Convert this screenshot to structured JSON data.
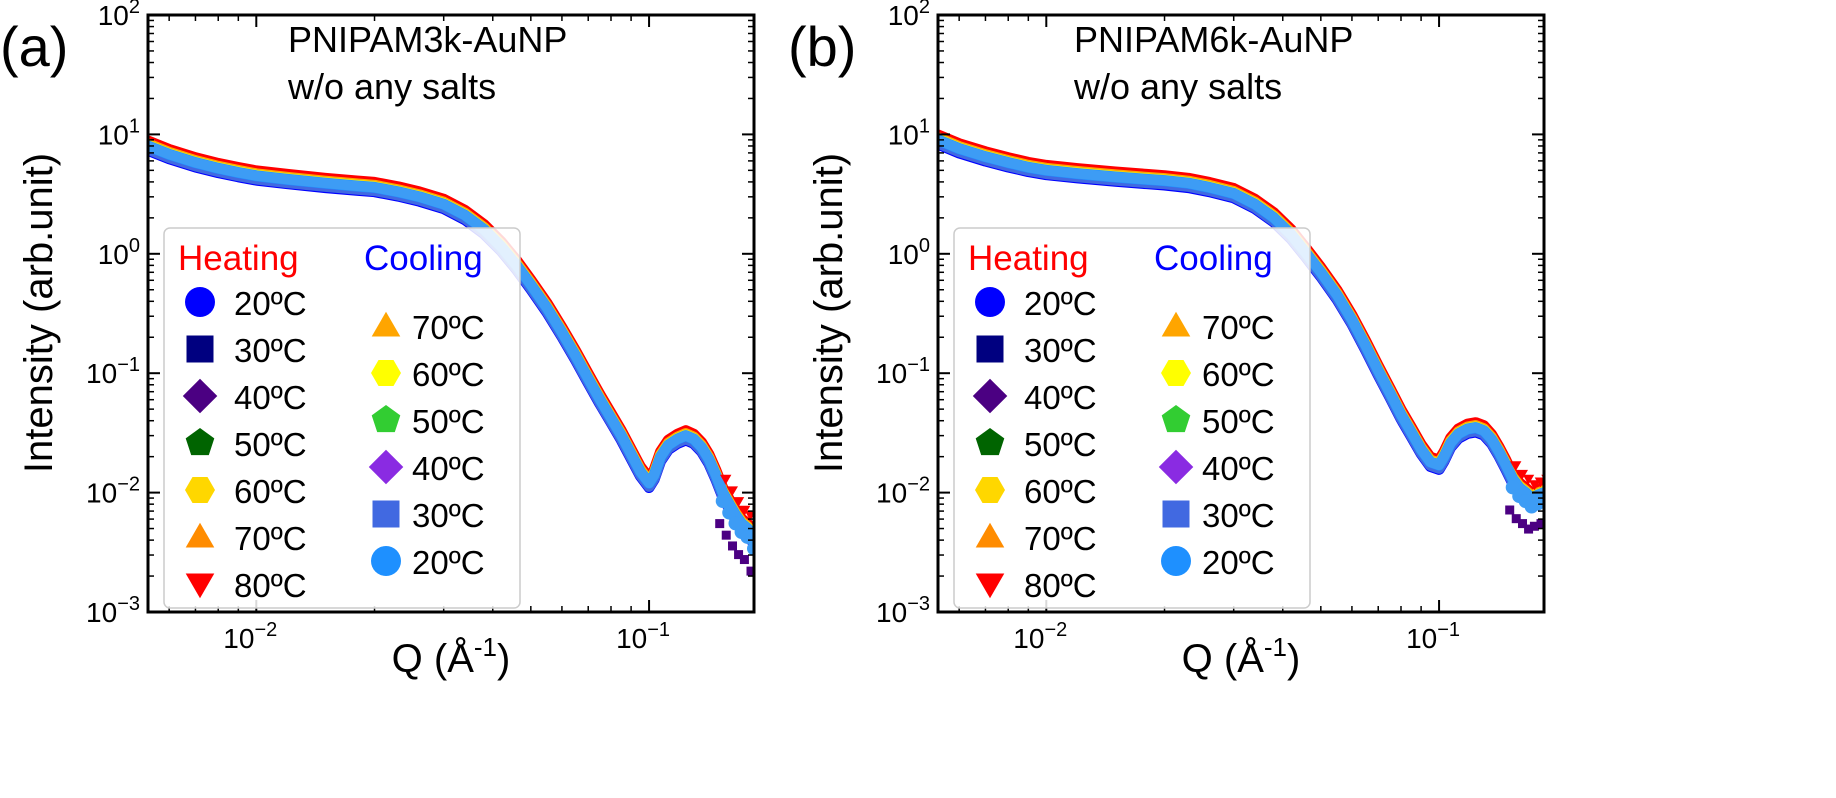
{
  "chart_data": [
    {
      "panel_label": "(a)",
      "type": "scatter",
      "title_lines": [
        "PNIPAM3k-AuNP",
        "w/o any salts"
      ],
      "xlabel": "Q (Å",
      "xlabel_sup": "-1",
      "xlabel_close": ")",
      "ylabel": "Intensity (arb.unit)",
      "xscale": "log",
      "yscale": "log",
      "xlim": [
        0.0053,
        0.185
      ],
      "ylim": [
        0.001,
        100
      ],
      "x_ticks": [
        {
          "value": 0.01,
          "base": "10",
          "exp": "−2"
        },
        {
          "value": 0.1,
          "base": "10",
          "exp": "−1"
        }
      ],
      "y_ticks": [
        {
          "value": 100,
          "base": "10",
          "exp": "2"
        },
        {
          "value": 10,
          "base": "10",
          "exp": "1"
        },
        {
          "value": 1,
          "base": "10",
          "exp": "0"
        },
        {
          "value": 0.1,
          "base": "10",
          "exp": "−1"
        },
        {
          "value": 0.01,
          "base": "10",
          "exp": "−2"
        },
        {
          "value": 0.001,
          "base": "10",
          "exp": "−3"
        }
      ],
      "curve_q": [
        0.0053,
        0.006,
        0.007,
        0.008,
        0.009,
        0.01,
        0.012,
        0.015,
        0.018,
        0.02,
        0.023,
        0.026,
        0.03,
        0.034,
        0.038,
        0.042,
        0.046,
        0.05,
        0.055,
        0.06,
        0.065,
        0.07,
        0.075,
        0.08,
        0.085,
        0.09,
        0.095,
        0.1,
        0.103,
        0.107,
        0.112,
        0.118,
        0.124,
        0.13,
        0.136,
        0.142,
        0.148,
        0.154,
        0.16,
        0.166,
        0.172,
        0.178,
        0.185
      ],
      "curve_i": [
        8.0,
        6.8,
        5.8,
        5.2,
        4.8,
        4.5,
        4.2,
        3.9,
        3.7,
        3.6,
        3.3,
        3.0,
        2.6,
        2.1,
        1.6,
        1.15,
        0.8,
        0.55,
        0.35,
        0.22,
        0.14,
        0.09,
        0.06,
        0.042,
        0.03,
        0.021,
        0.015,
        0.012,
        0.014,
        0.02,
        0.025,
        0.028,
        0.03,
        0.028,
        0.024,
        0.019,
        0.014,
        0.01,
        0.008,
        0.0065,
        0.0055,
        0.005,
        0.004
      ],
      "legend": {
        "heating_title": "Heating",
        "cooling_title": "Cooling",
        "heating_color": "#ff0000",
        "cooling_color": "#0000ff",
        "heating": [
          {
            "label": "20ºC",
            "marker": "circle",
            "color": "#0000ff"
          },
          {
            "label": "30ºC",
            "marker": "square",
            "color": "#000080"
          },
          {
            "label": "40ºC",
            "marker": "diamond",
            "color": "#4b0082"
          },
          {
            "label": "50ºC",
            "marker": "pentagon",
            "color": "#006400"
          },
          {
            "label": "60ºC",
            "marker": "hexagon",
            "color": "#ffd700"
          },
          {
            "label": "70ºC",
            "marker": "triangle-up",
            "color": "#ff8c00"
          },
          {
            "label": "80ºC",
            "marker": "triangle-down",
            "color": "#ff0000"
          }
        ],
        "cooling": [
          {
            "label": "70ºC",
            "marker": "triangle-up",
            "color": "#ffa500"
          },
          {
            "label": "60ºC",
            "marker": "hexagon",
            "color": "#ffff00"
          },
          {
            "label": "50ºC",
            "marker": "pentagon",
            "color": "#32cd32"
          },
          {
            "label": "40ºC",
            "marker": "diamond",
            "color": "#8a2be2"
          },
          {
            "label": "30ºC",
            "marker": "square",
            "color": "#4169e1"
          },
          {
            "label": "20ºC",
            "marker": "circle",
            "color": "#1e90ff"
          }
        ]
      }
    },
    {
      "panel_label": "(b)",
      "type": "scatter",
      "title_lines": [
        "PNIPAM6k-AuNP",
        "w/o any salts"
      ],
      "xlabel": "Q (Å",
      "xlabel_sup": "-1",
      "xlabel_close": ")",
      "ylabel": "Intensity (arb.unit)",
      "xscale": "log",
      "yscale": "log",
      "xlim": [
        0.0053,
        0.185
      ],
      "ylim": [
        0.001,
        100
      ],
      "x_ticks": [
        {
          "value": 0.01,
          "base": "10",
          "exp": "−2"
        },
        {
          "value": 0.1,
          "base": "10",
          "exp": "−1"
        }
      ],
      "y_ticks": [
        {
          "value": 100,
          "base": "10",
          "exp": "2"
        },
        {
          "value": 10,
          "base": "10",
          "exp": "1"
        },
        {
          "value": 1,
          "base": "10",
          "exp": "0"
        },
        {
          "value": 0.1,
          "base": "10",
          "exp": "−1"
        },
        {
          "value": 0.01,
          "base": "10",
          "exp": "−2"
        },
        {
          "value": 0.001,
          "base": "10",
          "exp": "−3"
        }
      ],
      "curve_q": [
        0.0053,
        0.006,
        0.007,
        0.008,
        0.009,
        0.01,
        0.012,
        0.015,
        0.018,
        0.02,
        0.023,
        0.026,
        0.03,
        0.034,
        0.038,
        0.042,
        0.046,
        0.05,
        0.055,
        0.06,
        0.065,
        0.07,
        0.075,
        0.08,
        0.085,
        0.09,
        0.095,
        0.1,
        0.103,
        0.107,
        0.112,
        0.118,
        0.124,
        0.13,
        0.136,
        0.142,
        0.148,
        0.154,
        0.16,
        0.166,
        0.172,
        0.178,
        0.185
      ],
      "curve_i": [
        9.0,
        7.6,
        6.5,
        5.8,
        5.3,
        5.0,
        4.7,
        4.4,
        4.2,
        4.1,
        3.9,
        3.6,
        3.2,
        2.6,
        2.0,
        1.45,
        1.0,
        0.7,
        0.45,
        0.28,
        0.17,
        0.105,
        0.068,
        0.045,
        0.032,
        0.023,
        0.018,
        0.017,
        0.02,
        0.026,
        0.031,
        0.034,
        0.035,
        0.033,
        0.028,
        0.022,
        0.017,
        0.013,
        0.011,
        0.01,
        0.009,
        0.0095,
        0.01
      ],
      "legend": {
        "heating_title": "Heating",
        "cooling_title": "Cooling",
        "heating_color": "#ff0000",
        "cooling_color": "#0000ff",
        "heating": [
          {
            "label": "20ºC",
            "marker": "circle",
            "color": "#0000ff"
          },
          {
            "label": "30ºC",
            "marker": "square",
            "color": "#000080"
          },
          {
            "label": "40ºC",
            "marker": "diamond",
            "color": "#4b0082"
          },
          {
            "label": "50ºC",
            "marker": "pentagon",
            "color": "#006400"
          },
          {
            "label": "60ºC",
            "marker": "hexagon",
            "color": "#ffd700"
          },
          {
            "label": "70ºC",
            "marker": "triangle-up",
            "color": "#ff8c00"
          },
          {
            "label": "80ºC",
            "marker": "triangle-down",
            "color": "#ff0000"
          }
        ],
        "cooling": [
          {
            "label": "70ºC",
            "marker": "triangle-up",
            "color": "#ffa500"
          },
          {
            "label": "60ºC",
            "marker": "hexagon",
            "color": "#ffff00"
          },
          {
            "label": "50ºC",
            "marker": "pentagon",
            "color": "#32cd32"
          },
          {
            "label": "40ºC",
            "marker": "diamond",
            "color": "#8a2be2"
          },
          {
            "label": "30ºC",
            "marker": "square",
            "color": "#4169e1"
          },
          {
            "label": "20ºC",
            "marker": "circle",
            "color": "#1e90ff"
          }
        ]
      }
    }
  ]
}
